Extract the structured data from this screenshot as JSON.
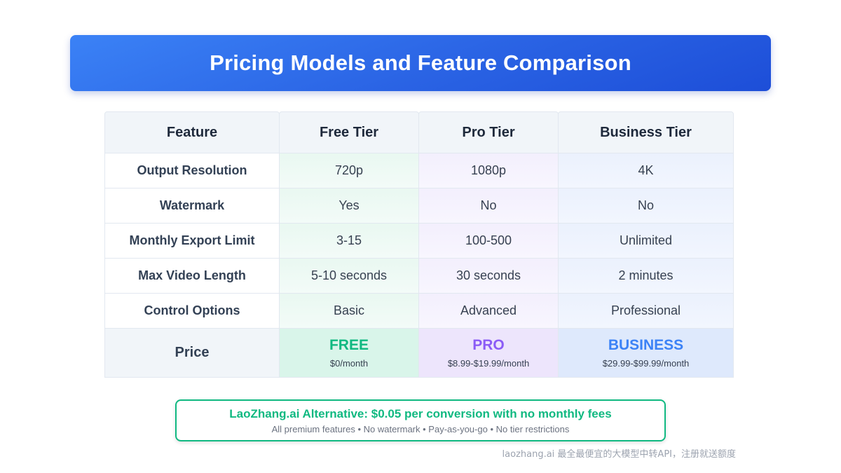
{
  "title": "Pricing Models and Feature Comparison",
  "table": {
    "headers": [
      "Feature",
      "Free Tier",
      "Pro Tier",
      "Business Tier"
    ],
    "rows": [
      {
        "feature": "Output Resolution",
        "free": "720p",
        "pro": "1080p",
        "business": "4K"
      },
      {
        "feature": "Watermark",
        "free": "Yes",
        "pro": "No",
        "business": "No"
      },
      {
        "feature": "Monthly Export Limit",
        "free": "3-15",
        "pro": "100-500",
        "business": "Unlimited"
      },
      {
        "feature": "Max Video Length",
        "free": "5-10 seconds",
        "pro": "30 seconds",
        "business": "2 minutes"
      },
      {
        "feature": "Control Options",
        "free": "Basic",
        "pro": "Advanced",
        "business": "Professional"
      }
    ],
    "price_row": {
      "label": "Price",
      "free": {
        "name": "FREE",
        "price": "$0/month",
        "color": "#10b981"
      },
      "pro": {
        "name": "PRO",
        "price": "$8.99-$19.99/month",
        "color": "#8b5cf6"
      },
      "business": {
        "name": "BUSINESS",
        "price": "$29.99-$99.99/month",
        "color": "#3b82f6"
      }
    }
  },
  "alternative": {
    "title": "LaoZhang.ai Alternative: $0.05 per conversion with no monthly fees",
    "subtitle": "All premium features • No watermark • Pay-as-you-go • No tier restrictions",
    "accent": "#10b981"
  },
  "footer_note": "laozhang.ai 最全最便宜的大模型中转API，注册就送额度"
}
